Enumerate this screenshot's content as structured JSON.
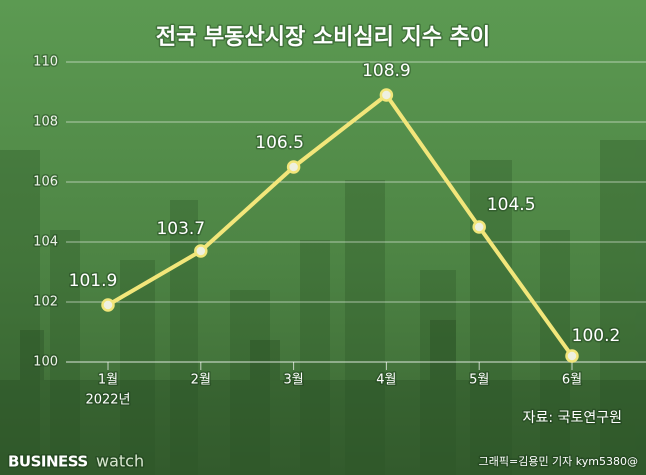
{
  "chart_data": {
    "type": "line",
    "title": "전국 부동산시장 소비심리 지수 추이",
    "categories": [
      "1월",
      "2월",
      "3월",
      "4월",
      "5월",
      "6월"
    ],
    "x_annotation": "2022년",
    "series": [
      {
        "color": "#f2e67a",
        "values": [
          101.9,
          103.7,
          106.5,
          108.9,
          104.5,
          100.2
        ]
      }
    ],
    "ylim": [
      100,
      110
    ],
    "yticks": [
      100,
      102,
      104,
      106,
      108,
      110
    ],
    "grid": true,
    "source": "자료: 국토연구원",
    "logo_credit": "그래픽=김용민 기자 kym5380@",
    "logo": {
      "bold": "BUSINESS",
      "light": "watch"
    }
  }
}
